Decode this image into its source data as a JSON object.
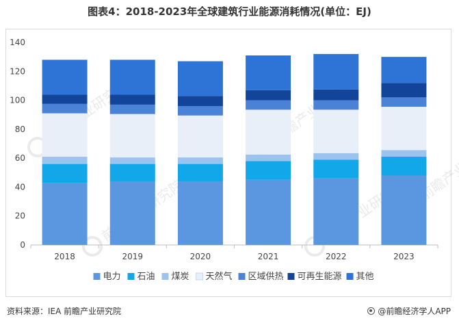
{
  "page": {
    "title": "图表4：2018-2023年全球建筑行业能源消耗情况(单位：EJ)",
    "source": "资料来源：IEA 前瞻产业研究院",
    "brand": "@前瞻经济学人APP"
  },
  "colors": {
    "电力": "#5b96e0",
    "石油": "#11a7e8",
    "煤炭": "#9cc2ee",
    "天然气": "#e8eff9",
    "区域供热": "#4a82d8",
    "可再生能源": "#12449a",
    "其他": "#2d74d6"
  },
  "chart_data": {
    "type": "bar",
    "stacked": true,
    "title": "图表4：2018-2023年全球建筑行业能源消耗情况(单位：EJ)",
    "categories": [
      "2018",
      "2019",
      "2020",
      "2021",
      "2022",
      "2023"
    ],
    "ylim": [
      0,
      140
    ],
    "yticks": [
      0,
      20,
      40,
      60,
      80,
      100,
      120,
      140
    ],
    "xlabel": "",
    "ylabel": "",
    "grid": false,
    "legend": "bottom",
    "series": [
      {
        "name": "电力",
        "values": [
          43,
          44,
          44,
          45,
          46,
          48
        ]
      },
      {
        "name": "石油",
        "values": [
          13,
          12,
          12,
          13,
          13,
          13
        ]
      },
      {
        "name": "煤炭",
        "values": [
          5,
          4.5,
          4.5,
          4.5,
          4.5,
          4.5
        ]
      },
      {
        "name": "天然气",
        "values": [
          30,
          30,
          29,
          31,
          30,
          30
        ]
      },
      {
        "name": "区域供热",
        "values": [
          6.5,
          6.5,
          6.5,
          6.5,
          6.5,
          6.5
        ]
      },
      {
        "name": "可再生能源",
        "values": [
          6.5,
          7,
          7,
          7,
          7.5,
          10
        ]
      },
      {
        "name": "其他",
        "values": [
          24,
          24,
          24,
          24,
          24.5,
          18
        ]
      }
    ]
  }
}
